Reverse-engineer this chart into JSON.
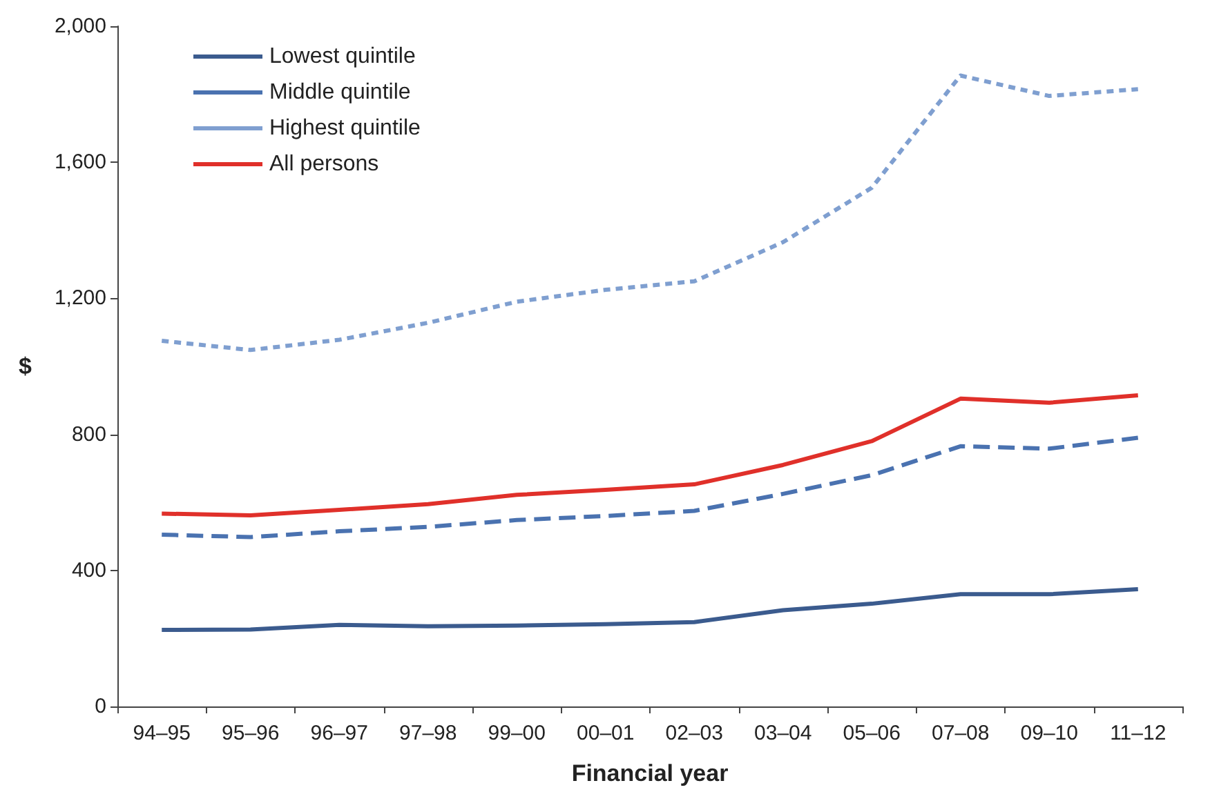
{
  "chart_data": {
    "type": "line",
    "xlabel": "Financial year",
    "ylabel": "$",
    "categories": [
      "94–95",
      "95–96",
      "96–97",
      "97–98",
      "99–00",
      "00–01",
      "02–03",
      "03–04",
      "05–06",
      "07–08",
      "09–10",
      "11–12"
    ],
    "series": [
      {
        "name": "Lowest quintile",
        "color": "#3b5b8e",
        "line_style": "solid",
        "values": [
          225,
          226,
          240,
          236,
          238,
          242,
          248,
          283,
          302,
          330,
          330,
          345
        ]
      },
      {
        "name": "Middle quintile",
        "color": "#4a72b0",
        "line_style": "dashed",
        "values": [
          505,
          498,
          515,
          528,
          548,
          560,
          575,
          625,
          680,
          765,
          758,
          790
        ]
      },
      {
        "name": "Highest quintile",
        "color": "#7f9fd0",
        "line_style": "dotted",
        "values": [
          1075,
          1048,
          1078,
          1128,
          1190,
          1225,
          1250,
          1365,
          1525,
          1855,
          1795,
          1815
        ]
      },
      {
        "name": "All persons",
        "color": "#e0302a",
        "line_style": "solid",
        "values": [
          567,
          562,
          578,
          595,
          622,
          637,
          653,
          710,
          780,
          905,
          893,
          915
        ]
      }
    ],
    "ylim": [
      0,
      2000
    ],
    "yticks": [
      0,
      400,
      800,
      {
        "value": 1200,
        "label": "1,200"
      },
      {
        "value": 1600,
        "label": "1,600"
      },
      {
        "value": 2000,
        "label": "2,000"
      }
    ],
    "grid": false,
    "legend": "top left",
    "marker": "none"
  }
}
